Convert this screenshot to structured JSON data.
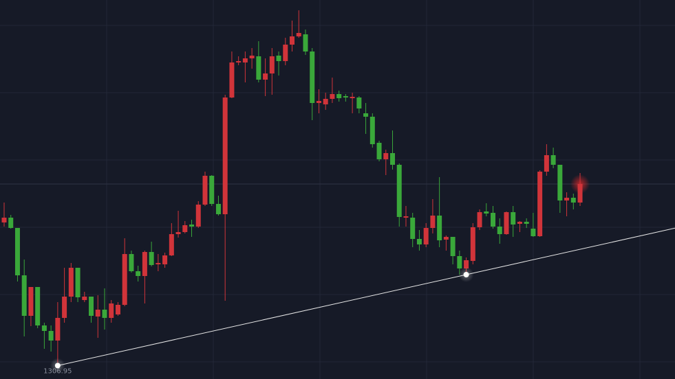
{
  "chart_data": {
    "type": "candlestick",
    "up_color": "#d1343a",
    "down_color": "#3aa83a",
    "ylim": [
      1305,
      1360.2
    ],
    "open": [
      1327.8,
      1328.5,
      1327.0,
      1320.1,
      1314.2,
      1318.4,
      1312.8,
      1312.0,
      1310.6,
      1313.9,
      1317.0,
      1321.2,
      1316.5,
      1317.0,
      1314.1,
      1315.1,
      1313.9,
      1314.4,
      1315.8,
      1323.2,
      1320.7,
      1320.0,
      1323.5,
      1321.7,
      1321.7,
      1323.0,
      1326.1,
      1326.4,
      1327.5,
      1327.2,
      1330.4,
      1334.6,
      1330.5,
      1329.0,
      1346.0,
      1351.1,
      1351.1,
      1351.7,
      1352.0,
      1348.6,
      1349.5,
      1352.1,
      1351.3,
      1353.7,
      1354.9,
      1355.2,
      1352.7,
      1345.2,
      1345.0,
      1345.8,
      1346.5,
      1346.2,
      1345.9,
      1346.0,
      1343.7,
      1343.2,
      1339.4,
      1337.0,
      1337.9,
      1336.2,
      1328.5,
      1328.5,
      1325.4,
      1324.6,
      1327.0,
      1328.8,
      1325.3,
      1325.7,
      1322.9,
      1321.1,
      1322.2,
      1327.1,
      1329.4,
      1329.2,
      1327.2,
      1326.1,
      1329.3,
      1327.6,
      1327.9,
      1326.9,
      1325.8,
      1335.2,
      1337.6,
      1336.2,
      1331.0,
      1331.4,
      1330.7
    ],
    "high": [
      1330.7,
      1328.9,
      1327.0,
      1322.4,
      1318.4,
      1318.4,
      1313.2,
      1312.8,
      1316.2,
      1321.2,
      1321.9,
      1321.2,
      1317.7,
      1317.0,
      1317.2,
      1318.2,
      1316.5,
      1316.2,
      1325.5,
      1323.7,
      1321.5,
      1323.7,
      1325.0,
      1323.2,
      1323.4,
      1327.7,
      1329.5,
      1328.0,
      1328.2,
      1330.9,
      1335.2,
      1334.7,
      1331.7,
      1346.4,
      1352.7,
      1352.0,
      1352.7,
      1353.2,
      1354.2,
      1351.7,
      1353.2,
      1352.7,
      1354.7,
      1357.2,
      1358.7,
      1355.9,
      1353.2,
      1347.2,
      1346.7,
      1348.9,
      1347.0,
      1346.5,
      1346.7,
      1346.2,
      1345.2,
      1343.7,
      1339.7,
      1338.4,
      1341.2,
      1336.4,
      1330.2,
      1329.2,
      1326.7,
      1327.7,
      1331.2,
      1334.4,
      1325.9,
      1325.7,
      1323.7,
      1322.7,
      1327.7,
      1329.7,
      1330.6,
      1330.2,
      1328.4,
      1329.4,
      1330.2,
      1328.0,
      1328.4,
      1329.2,
      1335.4,
      1339.2,
      1338.7,
      1336.2,
      1332.2,
      1332.0,
      1335.0
    ],
    "low": [
      1327.2,
      1326.9,
      1319.2,
      1311.2,
      1312.7,
      1312.4,
      1309.4,
      1309.0,
      1306.95,
      1313.2,
      1316.2,
      1316.2,
      1316.2,
      1313.2,
      1311.0,
      1312.2,
      1313.2,
      1314.2,
      1315.6,
      1320.5,
      1319.2,
      1316.0,
      1321.4,
      1320.7,
      1321.2,
      1322.9,
      1325.6,
      1326.2,
      1325.7,
      1327.0,
      1330.2,
      1330.2,
      1328.8,
      1316.4,
      1345.9,
      1350.7,
      1348.2,
      1350.2,
      1348.2,
      1346.2,
      1346.4,
      1349.2,
      1350.7,
      1352.7,
      1354.7,
      1352.2,
      1342.7,
      1343.7,
      1344.2,
      1345.2,
      1345.4,
      1345.4,
      1343.7,
      1343.7,
      1340.7,
      1338.7,
      1336.7,
      1334.7,
      1335.5,
      1327.2,
      1327.2,
      1324.2,
      1323.7,
      1324.2,
      1326.2,
      1324.2,
      1323.7,
      1321.7,
      1320.2,
      1320.2,
      1321.7,
      1326.7,
      1328.7,
      1326.9,
      1324.7,
      1326.0,
      1325.7,
      1326.4,
      1327.0,
      1325.7,
      1325.7,
      1334.6,
      1335.7,
      1329.2,
      1328.7,
      1329.7,
      1330.2
    ],
    "close": [
      1328.5,
      1327.0,
      1320.1,
      1314.2,
      1318.4,
      1312.8,
      1312.0,
      1310.6,
      1313.9,
      1317.0,
      1321.2,
      1316.9,
      1317.0,
      1314.2,
      1315.1,
      1313.9,
      1316.0,
      1315.8,
      1323.2,
      1320.7,
      1320.0,
      1323.5,
      1321.6,
      1321.9,
      1323.0,
      1326.1,
      1326.4,
      1327.4,
      1327.2,
      1330.4,
      1334.6,
      1330.5,
      1329.0,
      1346.0,
      1351.1,
      1351.3,
      1351.7,
      1352.1,
      1348.6,
      1349.5,
      1352.0,
      1351.3,
      1353.7,
      1354.9,
      1355.4,
      1352.7,
      1345.2,
      1345.5,
      1345.8,
      1346.5,
      1345.9,
      1346.0,
      1346.1,
      1344.4,
      1343.2,
      1339.2,
      1337.0,
      1337.9,
      1336.2,
      1328.6,
      1328.7,
      1325.4,
      1324.6,
      1327.0,
      1328.8,
      1325.2,
      1325.7,
      1322.9,
      1321.1,
      1322.3,
      1327.1,
      1329.3,
      1329.1,
      1327.2,
      1326.1,
      1329.3,
      1327.5,
      1327.9,
      1327.6,
      1325.8,
      1335.2,
      1337.6,
      1336.2,
      1331.0,
      1331.4,
      1330.7,
      1333.4
    ],
    "trendline": {
      "x": [
        8,
        69
      ],
      "values": [
        1306.95,
        1320.2
      ]
    }
  }
}
